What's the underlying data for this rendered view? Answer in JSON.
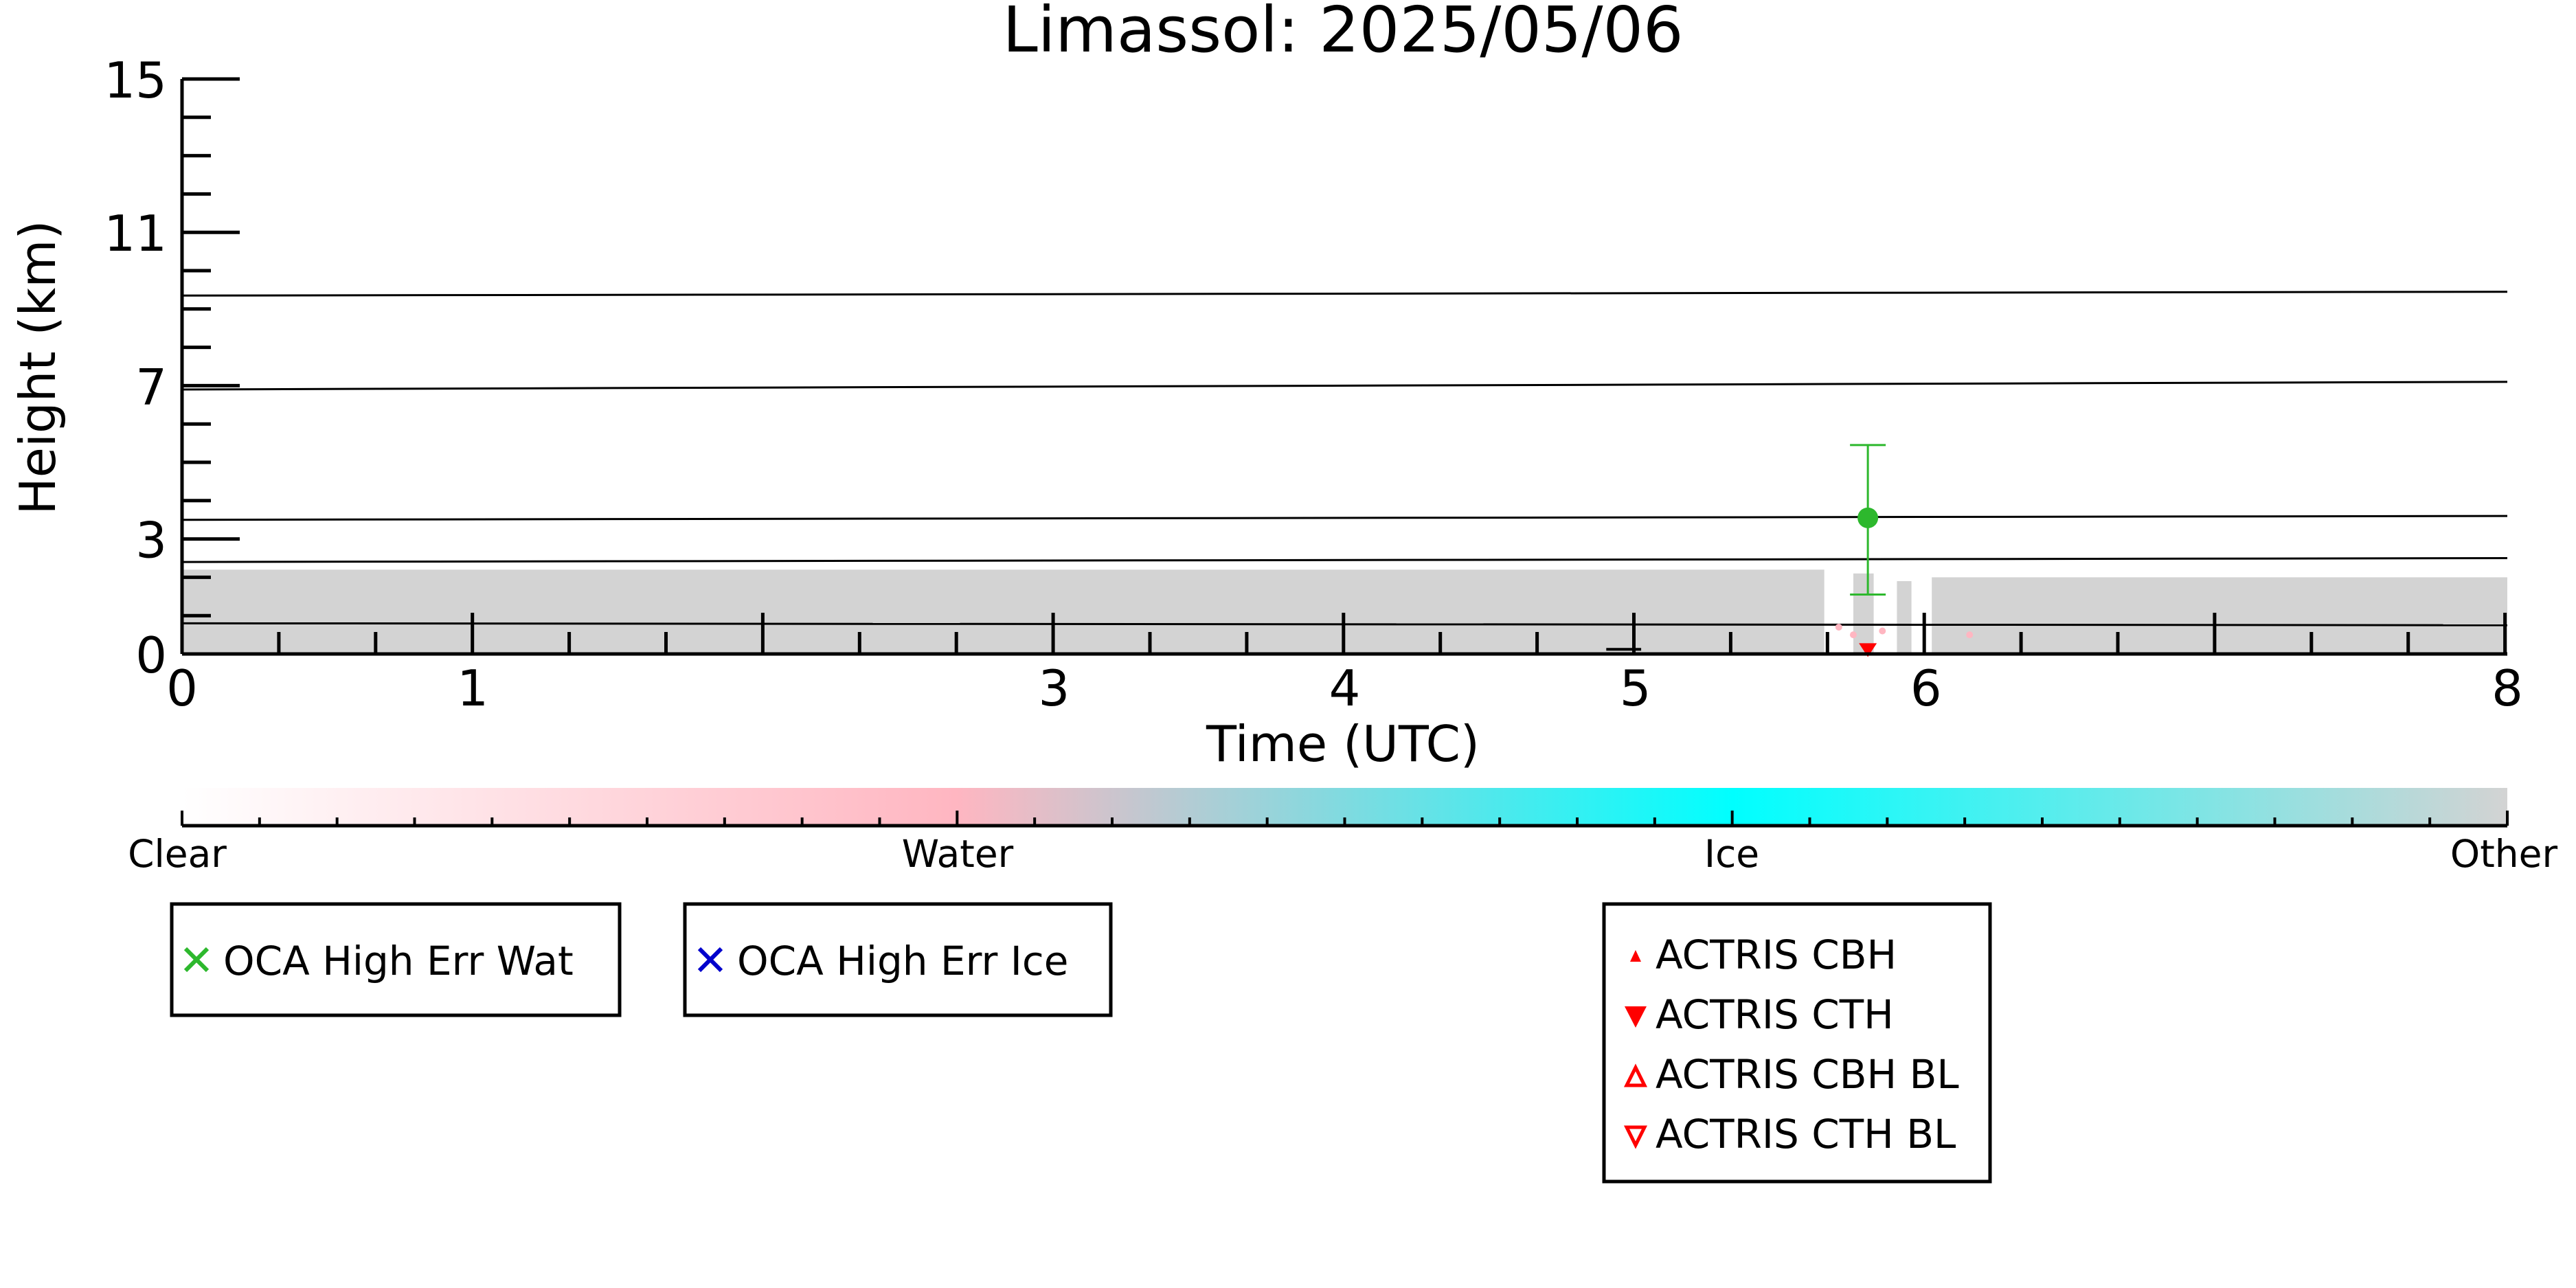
{
  "colors": {
    "axis": "#000000",
    "clear": "#ffffff",
    "water": "#ffb6c1",
    "ice": "#00ffff",
    "other": "#d3d3d3",
    "oca_water": "#2db82d",
    "oca_ice": "#0000cc",
    "actris": "#ff0000"
  },
  "chart_data": {
    "type": "scatter",
    "title": "Limassol: 2025/05/06",
    "xlabel": "Time (UTC)",
    "ylabel": "Height (km)",
    "xlim": [
      0,
      8
    ],
    "ylim": [
      0,
      15
    ],
    "x_ticks": [
      0,
      1,
      3,
      4,
      5,
      6,
      8
    ],
    "y_ticks": [
      0,
      3,
      7,
      11,
      15
    ],
    "x_tick_labels": [
      "0",
      "1",
      "3",
      "4",
      "5",
      "6",
      "8"
    ],
    "y_tick_labels": [
      "0",
      "3",
      "7",
      "11",
      "15"
    ],
    "x_minor_step": 0.333,
    "y_minor_step": 1,
    "grid": false,
    "level_lines": [
      {
        "x": [
          0,
          8
        ],
        "y": [
          0.8,
          0.75
        ]
      },
      {
        "x": [
          0,
          8
        ],
        "y": [
          2.4,
          2.5
        ]
      },
      {
        "x": [
          0,
          8
        ],
        "y": [
          3.5,
          3.6
        ]
      },
      {
        "x": [
          0,
          8
        ],
        "y": [
          6.9,
          7.1
        ]
      },
      {
        "x": [
          0,
          8
        ],
        "y": [
          9.35,
          9.45
        ]
      }
    ],
    "classification_band": {
      "class": "Other",
      "segments": [
        {
          "x": [
            0,
            5.65
          ],
          "top": 2.2
        },
        {
          "x": [
            5.75,
            5.82
          ],
          "top": 2.1
        },
        {
          "x": [
            5.9,
            5.95
          ],
          "top": 1.9
        },
        {
          "x": [
            6.02,
            8
          ],
          "top": 2.0
        }
      ]
    },
    "water_points": [
      {
        "x": 5.7,
        "y": 0.7
      },
      {
        "x": 5.75,
        "y": 0.5
      },
      {
        "x": 5.85,
        "y": 0.6
      },
      {
        "x": 6.15,
        "y": 0.5
      }
    ],
    "oca_water_retrieval": {
      "x": 5.8,
      "y": 3.55,
      "y_low": 1.55,
      "y_high": 5.45
    },
    "actris_cth_point": {
      "x": 5.8,
      "y": 0.1
    },
    "small_segment": {
      "x": [
        4.9,
        5.02
      ],
      "y": 0.12
    },
    "colorbar": {
      "labels": [
        "Clear",
        "Water",
        "Ice",
        "Other"
      ],
      "positions": [
        0,
        0.333,
        0.667,
        1.0
      ]
    },
    "legends": [
      {
        "entries": [
          {
            "marker": "x",
            "label": "OCA High Err Wat"
          }
        ]
      },
      {
        "entries": [
          {
            "marker": "x",
            "label": "OCA High Err Ice"
          }
        ]
      },
      {
        "entries": [
          {
            "marker": "triangle-up",
            "label": "ACTRIS CBH"
          },
          {
            "marker": "triangle-down",
            "label": "ACTRIS CTH"
          },
          {
            "marker": "triangle-up-open",
            "label": "ACTRIS CBH BL"
          },
          {
            "marker": "triangle-down-open",
            "label": "ACTRIS CTH BL"
          }
        ]
      }
    ]
  }
}
